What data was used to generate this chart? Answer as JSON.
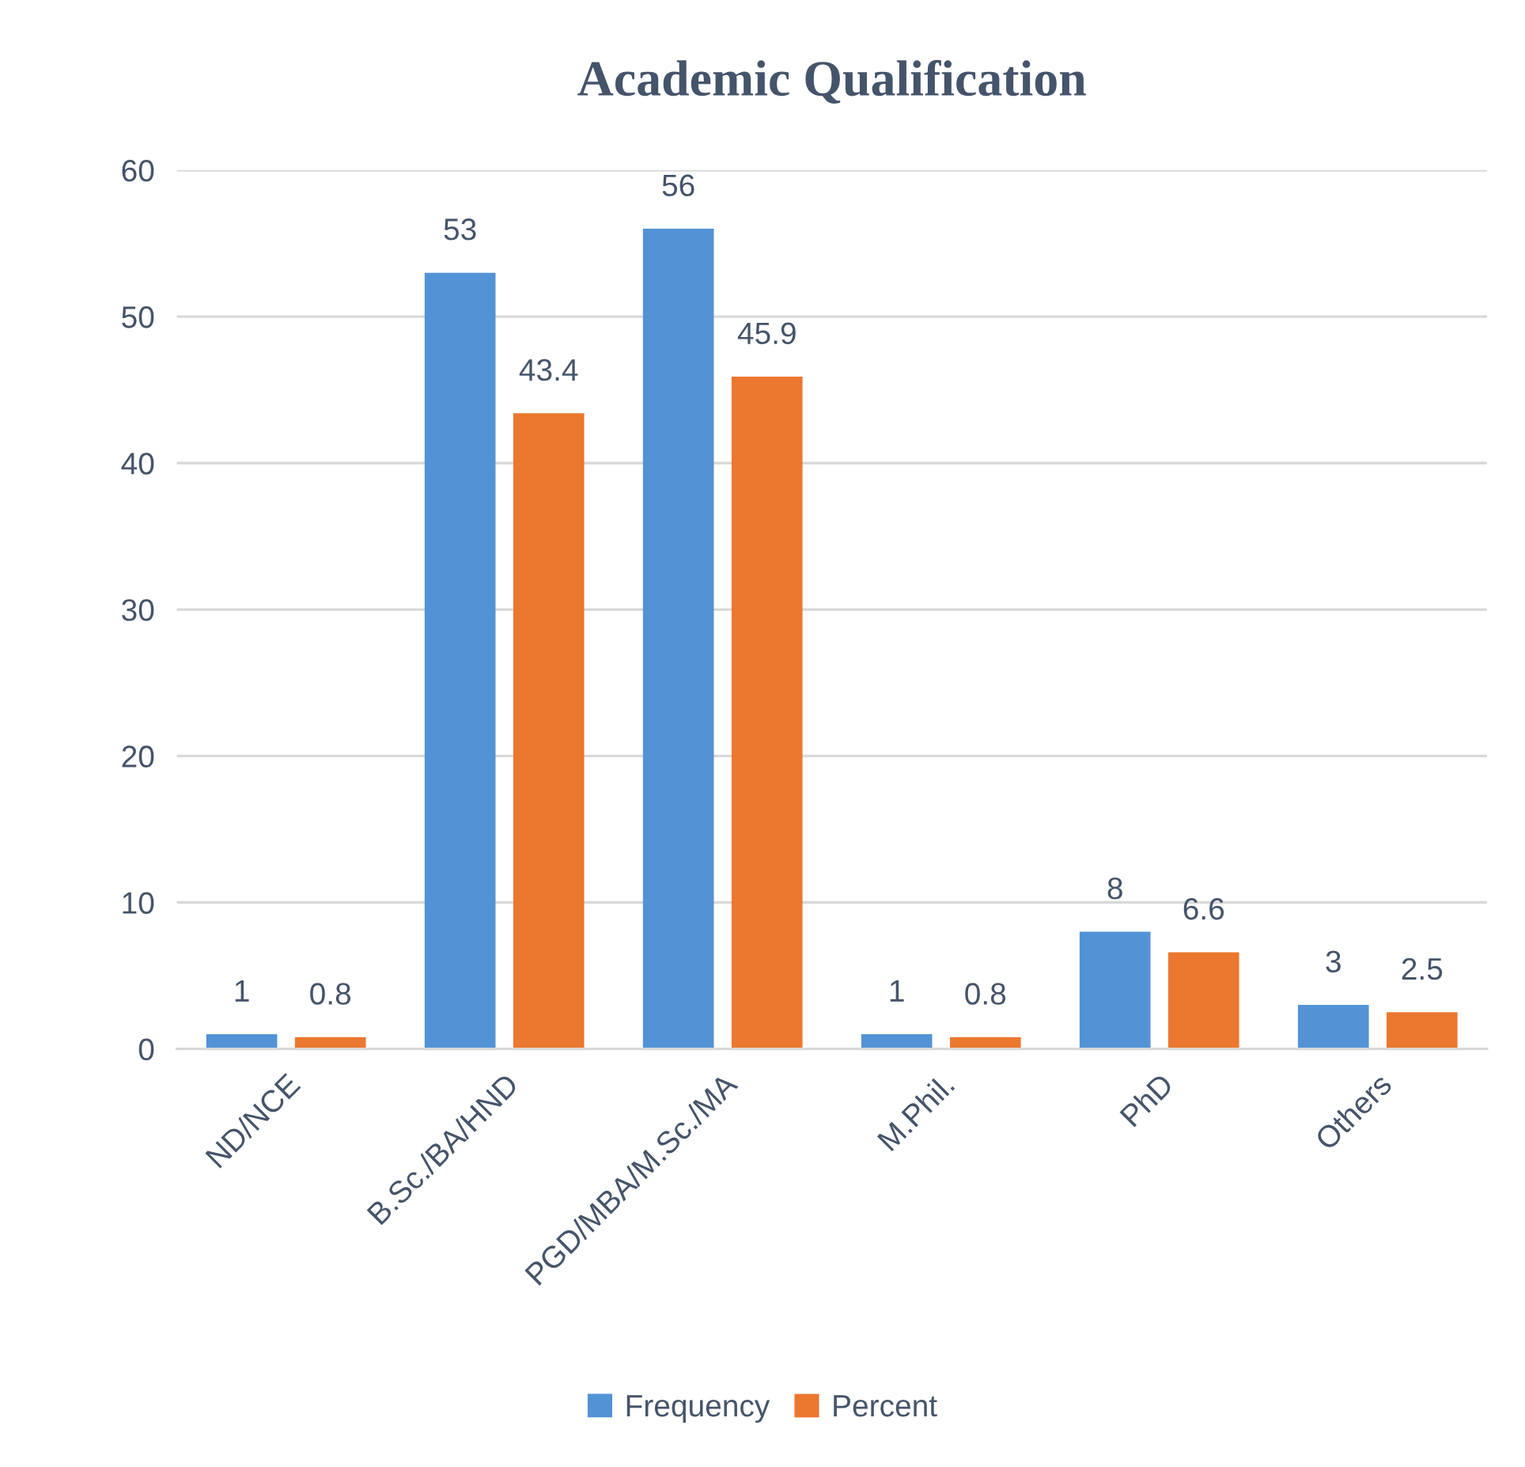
{
  "chart_data": {
    "type": "bar",
    "title": "Academic Qualification",
    "categories": [
      "ND/NCE",
      "B.Sc./BA/HND",
      "PGD/MBA/M.Sc./MA",
      "M.Phil.",
      "PhD",
      "Others"
    ],
    "series": [
      {
        "name": "Frequency",
        "color": "#5293d6",
        "values": [
          1,
          53,
          56,
          1,
          8,
          3
        ]
      },
      {
        "name": "Percent",
        "color": "#ec772f",
        "values": [
          0.8,
          43.4,
          45.9,
          0.8,
          6.6,
          2.5
        ]
      }
    ],
    "ylim": [
      0,
      60
    ],
    "yticks": [
      0,
      10,
      20,
      30,
      40,
      50,
      60
    ],
    "grid": "y",
    "legend": "bottom",
    "data_labels": true
  }
}
